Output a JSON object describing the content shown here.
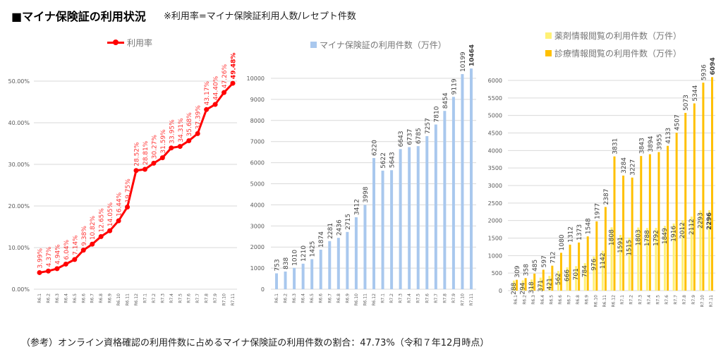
{
  "header": {
    "title": "■マイナ保険証の利用状況",
    "note": "※利用率=マイナ保険証利用人数/レセプト件数"
  },
  "footer": "（参考）オンライン資格確認の利用件数に占めるマイナ保険証の利用件数の割合：47.73%（令和７年12月時点）",
  "colors": {
    "rate": "#ff0000",
    "count": "#a9c8ee",
    "drug": "#fff176",
    "diag": "#ffc000"
  },
  "chart_data": [
    {
      "type": "line",
      "legend": [
        "利用率"
      ],
      "categories": [
        "R6.1",
        "R6.2",
        "R6.3",
        "R6.4",
        "R6.5",
        "R6.6",
        "R6.7",
        "R6.8",
        "R6.9",
        "R6.10",
        "R6.11",
        "R6.12",
        "R7.1",
        "R7.2",
        "R7.3",
        "R7.4",
        "R7.5",
        "R7.6",
        "R7.7",
        "R7.8",
        "R7.9",
        "R7.10",
        "R7.11"
      ],
      "values": [
        3.99,
        4.37,
        4.94,
        6.04,
        7.14,
        9.38,
        10.82,
        12.65,
        14.05,
        16.44,
        19.75,
        28.52,
        28.81,
        30.27,
        31.59,
        33.95,
        34.31,
        35.68,
        37.39,
        43.17,
        44.4,
        47.26,
        49.48
      ],
      "ylim": [
        0,
        50
      ],
      "yticks": [
        "0.00%",
        "10.00%",
        "20.00%",
        "30.00%",
        "40.00%",
        "50.00%"
      ],
      "grid": true
    },
    {
      "type": "bar",
      "legend": [
        "マイナ保険証の利用件数（万件）"
      ],
      "categories": [
        "R6.1",
        "R6.2",
        "R6.3",
        "R6.4",
        "R6.5",
        "R6.6",
        "R6.7",
        "R6.8",
        "R6.9",
        "R6.10",
        "R6.11",
        "R6.12",
        "R7.1",
        "R7.2",
        "R7.3",
        "R7.4",
        "R7.5",
        "R7.6",
        "R7.7",
        "R7.8",
        "R7.9",
        "R7.10",
        "R7.11"
      ],
      "values": [
        753,
        838,
        1010,
        1210,
        1425,
        1874,
        2281,
        2436,
        2715,
        3412,
        3998,
        6220,
        5622,
        5643,
        6643,
        6737,
        6785,
        7257,
        7810,
        8454,
        9119,
        10199,
        10464
      ],
      "ylim": [
        0,
        10000
      ],
      "yticks": [
        "0",
        "1000",
        "2000",
        "3000",
        "4000",
        "5000",
        "6000",
        "7000",
        "8000",
        "9000",
        "10000"
      ],
      "grid": true
    },
    {
      "type": "bar",
      "legend": [
        "薬剤情報閲覧の利用件数（万件）",
        "診療情報閲覧の利用件数（万件）"
      ],
      "categories": [
        "R6.1",
        "R6.2",
        "R6.3",
        "R6.4",
        "R6.5",
        "R6.6",
        "R6.7",
        "R6.8",
        "R6.9",
        "R6.10",
        "R6.11",
        "R6.12",
        "R7.1",
        "R7.2",
        "R7.3",
        "R7.4",
        "R7.5",
        "R7.6",
        "R7.7",
        "R7.8",
        "R7.9",
        "R7.10",
        "R7.11"
      ],
      "series": [
        {
          "name": "薬剤情報閲覧の利用件数（万件）",
          "values": [
            288,
            294,
            318,
            371,
            421,
            562,
            666,
            701,
            784,
            976,
            1142,
            1808,
            1591,
            1515,
            1803,
            1788,
            1792,
            1849,
            1916,
            2012,
            2112,
            2293,
            2296
          ]
        },
        {
          "name": "診療情報閲覧の利用件数（万件）",
          "values": [
            309,
            358,
            485,
            597,
            712,
            1080,
            1312,
            1373,
            1548,
            1977,
            2387,
            3831,
            3284,
            3227,
            3843,
            3894,
            3955,
            4133,
            4507,
            5073,
            5344,
            5936,
            6094
          ]
        }
      ],
      "ylim": [
        0,
        6000
      ],
      "yticks": [
        "0",
        "500",
        "1000",
        "1500",
        "2000",
        "2500",
        "3000",
        "3500",
        "4000",
        "4500",
        "5000",
        "5500",
        "6000"
      ],
      "grid": true
    }
  ]
}
